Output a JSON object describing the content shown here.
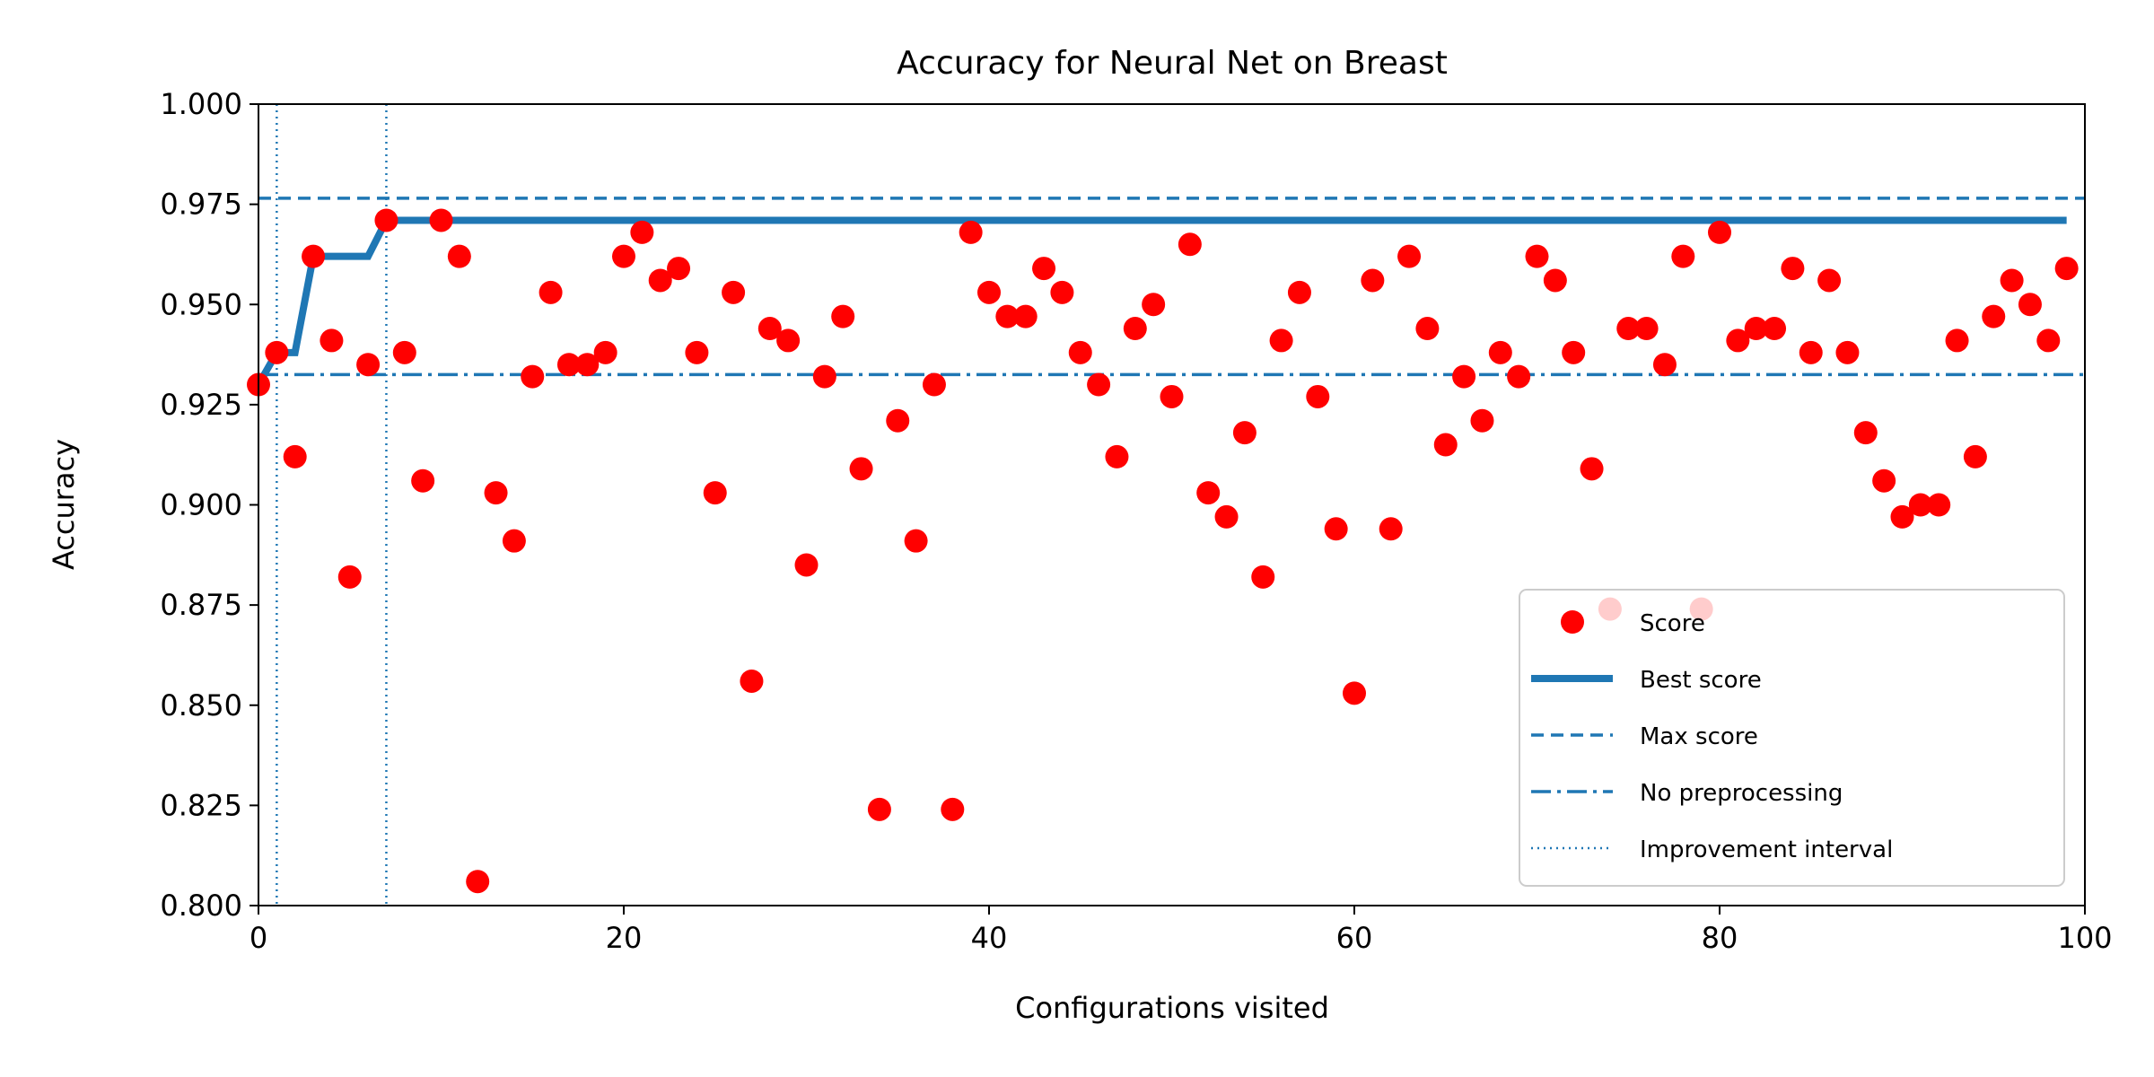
{
  "chart_data": {
    "type": "scatter",
    "title": "Accuracy for Neural Net on Breast",
    "xlabel": "Configurations visited",
    "ylabel": "Accuracy",
    "xlim": [
      0,
      100
    ],
    "ylim": [
      0.8,
      1.0
    ],
    "xticks": [
      "0",
      "20",
      "40",
      "60",
      "80",
      "100"
    ],
    "yticks": [
      "0.800",
      "0.825",
      "0.850",
      "0.875",
      "0.900",
      "0.925",
      "0.950",
      "0.975",
      "1.000"
    ],
    "grid": false,
    "legend_position": "lower-right",
    "colors": {
      "score": "#ff0000",
      "lines": "#1f77b4"
    },
    "series": [
      {
        "name": "Score",
        "style": "points",
        "x": [
          0,
          1,
          2,
          3,
          4,
          5,
          6,
          7,
          8,
          9,
          10,
          11,
          12,
          13,
          14,
          15,
          16,
          17,
          18,
          19,
          20,
          21,
          22,
          23,
          24,
          25,
          26,
          27,
          28,
          29,
          30,
          31,
          32,
          33,
          34,
          35,
          36,
          37,
          38,
          39,
          40,
          41,
          42,
          43,
          44,
          45,
          46,
          47,
          48,
          49,
          50,
          51,
          52,
          53,
          54,
          55,
          56,
          57,
          58,
          59,
          60,
          61,
          62,
          63,
          64,
          65,
          66,
          67,
          68,
          69,
          70,
          71,
          72,
          73,
          74,
          75,
          76,
          77,
          78,
          79,
          80,
          81,
          82,
          83,
          84,
          85,
          86,
          87,
          88,
          89,
          90,
          91,
          92,
          93,
          94,
          95,
          96,
          97,
          98,
          99
        ],
        "y": [
          0.93,
          0.938,
          0.912,
          0.962,
          0.941,
          0.882,
          0.935,
          0.971,
          0.938,
          0.906,
          0.971,
          0.962,
          0.806,
          0.903,
          0.891,
          0.932,
          0.953,
          0.935,
          0.935,
          0.938,
          0.962,
          0.968,
          0.956,
          0.959,
          0.938,
          0.903,
          0.953,
          0.856,
          0.944,
          0.941,
          0.885,
          0.932,
          0.947,
          0.909,
          0.824,
          0.921,
          0.891,
          0.93,
          0.824,
          0.968,
          0.953,
          0.947,
          0.947,
          0.959,
          0.953,
          0.938,
          0.93,
          0.912,
          0.944,
          0.95,
          0.927,
          0.965,
          0.903,
          0.897,
          0.918,
          0.882,
          0.941,
          0.953,
          0.927,
          0.894,
          0.853,
          0.956,
          0.894,
          0.962,
          0.944,
          0.915,
          0.932,
          0.921,
          0.938,
          0.932,
          0.962,
          0.956,
          0.938,
          0.909,
          0.874,
          0.944,
          0.944,
          0.935,
          0.962,
          0.874,
          0.968,
          0.941,
          0.944,
          0.944,
          0.959,
          0.938,
          0.956,
          0.938,
          0.918,
          0.906,
          0.897,
          0.9,
          0.9,
          0.941,
          0.912,
          0.947,
          0.956,
          0.95,
          0.941,
          0.959
        ]
      },
      {
        "name": "Best score",
        "style": "solid",
        "x": [
          0,
          1,
          2,
          3,
          4,
          5,
          6,
          7,
          99
        ],
        "y": [
          0.93,
          0.938,
          0.938,
          0.962,
          0.962,
          0.962,
          0.962,
          0.971,
          0.971
        ]
      },
      {
        "name": "Max score",
        "style": "dashed",
        "y": 0.9765
      },
      {
        "name": "No preprocessing",
        "style": "dashdot",
        "y": 0.9325
      },
      {
        "name": "Improvement interval",
        "style": "dotted",
        "x": [
          1,
          7
        ]
      }
    ]
  }
}
